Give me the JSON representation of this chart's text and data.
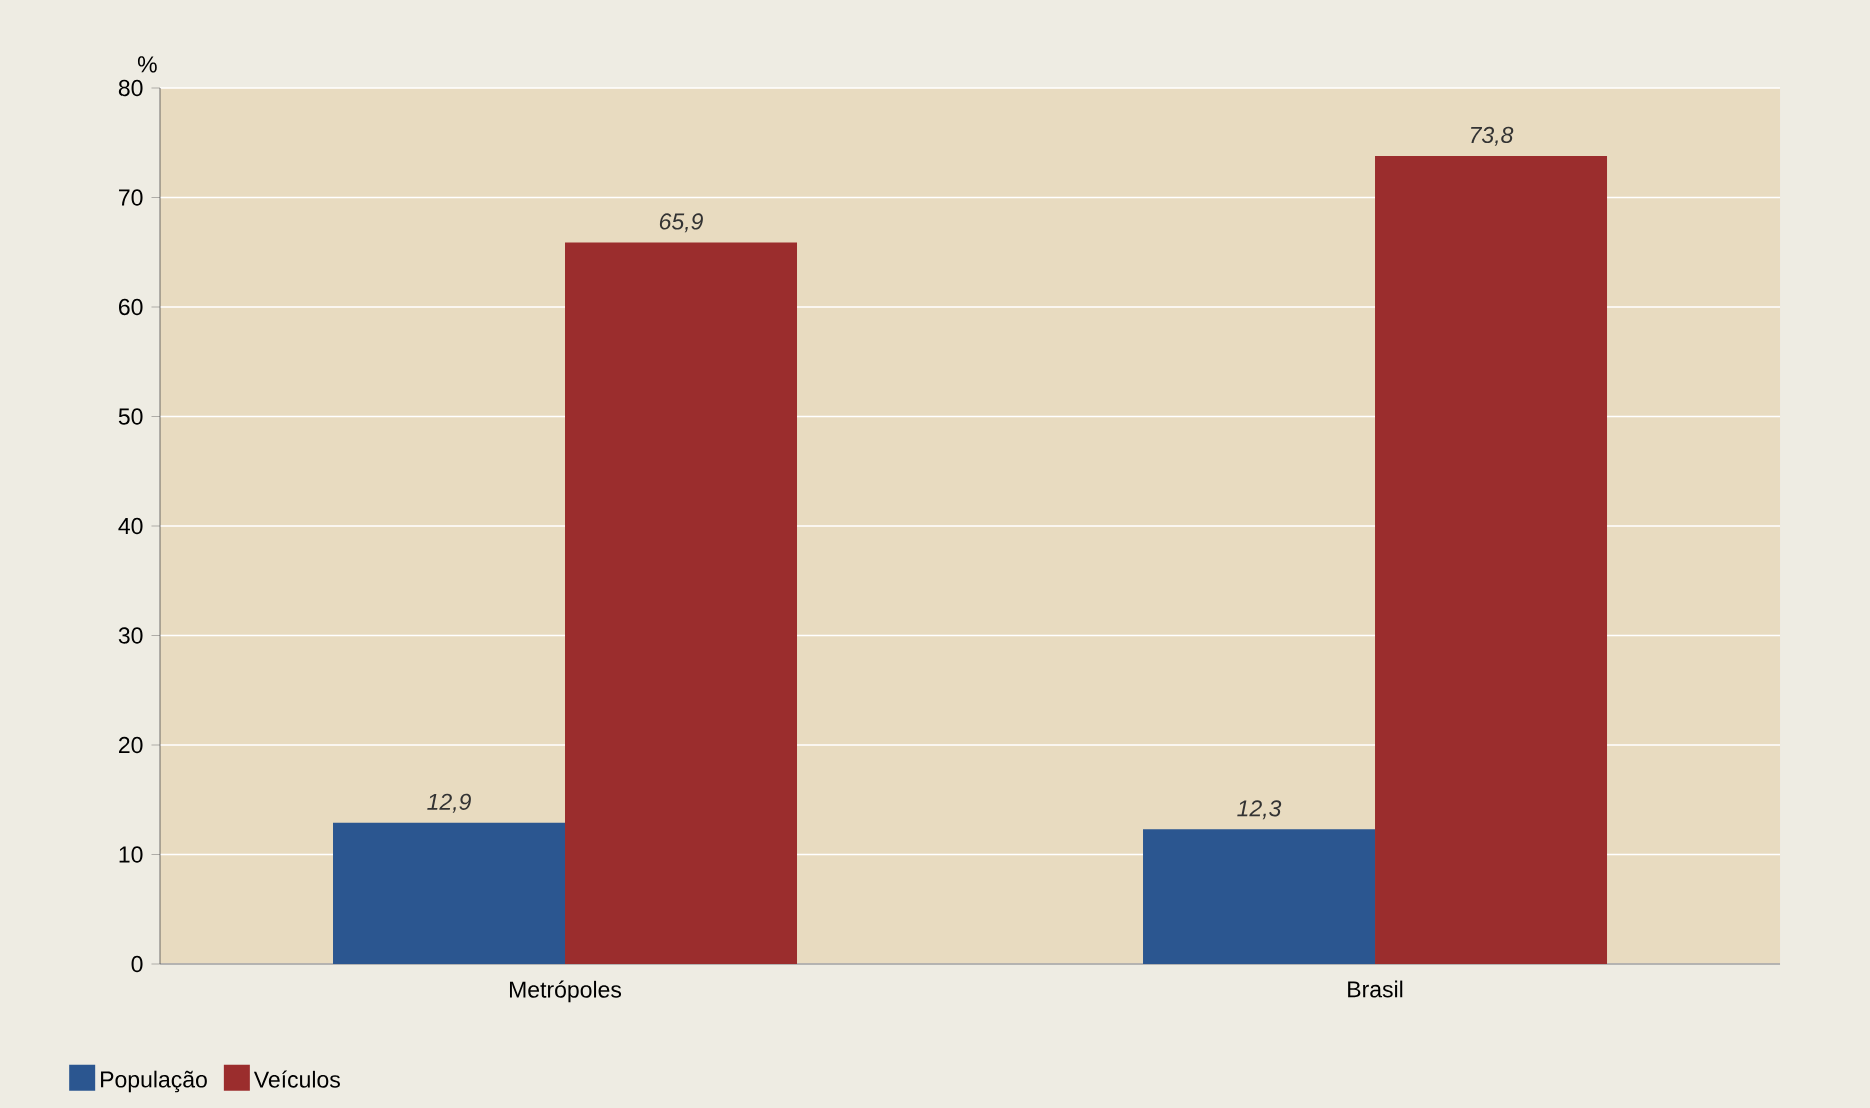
{
  "chart_data": {
    "type": "bar",
    "ylabel": "%",
    "categories": [
      "Metrópoles",
      "Brasil"
    ],
    "series": [
      {
        "name": "População",
        "color": "#2b5690",
        "values": [
          12.9,
          12.3
        ],
        "value_labels": [
          "12,9",
          "12,3"
        ]
      },
      {
        "name": "Veículos",
        "color": "#9b2d2d",
        "values": [
          65.9,
          73.8
        ],
        "value_labels": [
          "65,9",
          "73,8"
        ]
      }
    ],
    "ylim": [
      0,
      80
    ],
    "yticks": [
      0,
      10,
      20,
      30,
      40,
      50,
      60,
      70,
      80
    ],
    "grid": "y",
    "legend": "bottom left"
  }
}
